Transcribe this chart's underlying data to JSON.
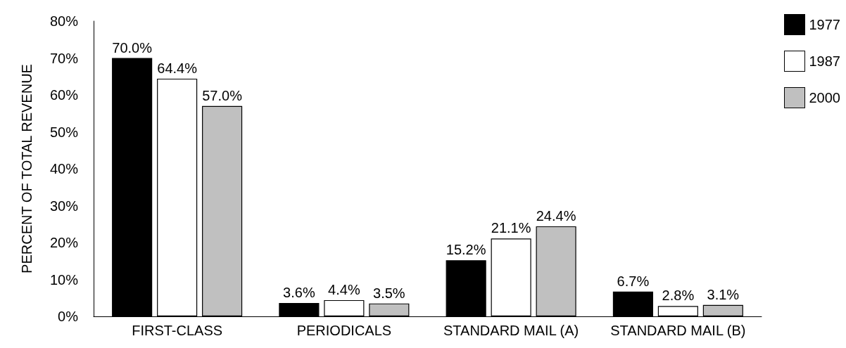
{
  "chart_data": {
    "type": "bar",
    "ylabel": "PERCENT OF TOTAL REVENUE",
    "categories": [
      "FIRST-CLASS",
      "PERIODICALS",
      "STANDARD MAIL (A)",
      "STANDARD MAIL (B)"
    ],
    "series": [
      {
        "name": "1977",
        "color": "#000000",
        "values": [
          70.0,
          3.6,
          15.2,
          6.7
        ],
        "value_labels": [
          "70.0%",
          "3.6%",
          "15.2%",
          "6.7%"
        ]
      },
      {
        "name": "1987",
        "color": "#ffffff",
        "values": [
          64.4,
          4.4,
          21.1,
          2.8
        ],
        "value_labels": [
          "64.4%",
          "4.4%",
          "21.1%",
          "2.8%"
        ]
      },
      {
        "name": "2000",
        "color": "#c0c0c0",
        "values": [
          57.0,
          3.5,
          24.4,
          3.1
        ],
        "value_labels": [
          "57.0%",
          "3.5%",
          "24.4%",
          "3.1%"
        ]
      }
    ],
    "ylim": [
      0,
      80
    ],
    "yticks": [
      {
        "value": 0,
        "label": "0%"
      },
      {
        "value": 10,
        "label": "10%"
      },
      {
        "value": 20,
        "label": "20%"
      },
      {
        "value": 30,
        "label": "30%"
      },
      {
        "value": 40,
        "label": "40%"
      },
      {
        "value": 50,
        "label": "50%"
      },
      {
        "value": 60,
        "label": "60%"
      },
      {
        "value": 70,
        "label": "70%"
      },
      {
        "value": 80,
        "label": "80%"
      }
    ],
    "grid": false,
    "legend": "top right"
  }
}
